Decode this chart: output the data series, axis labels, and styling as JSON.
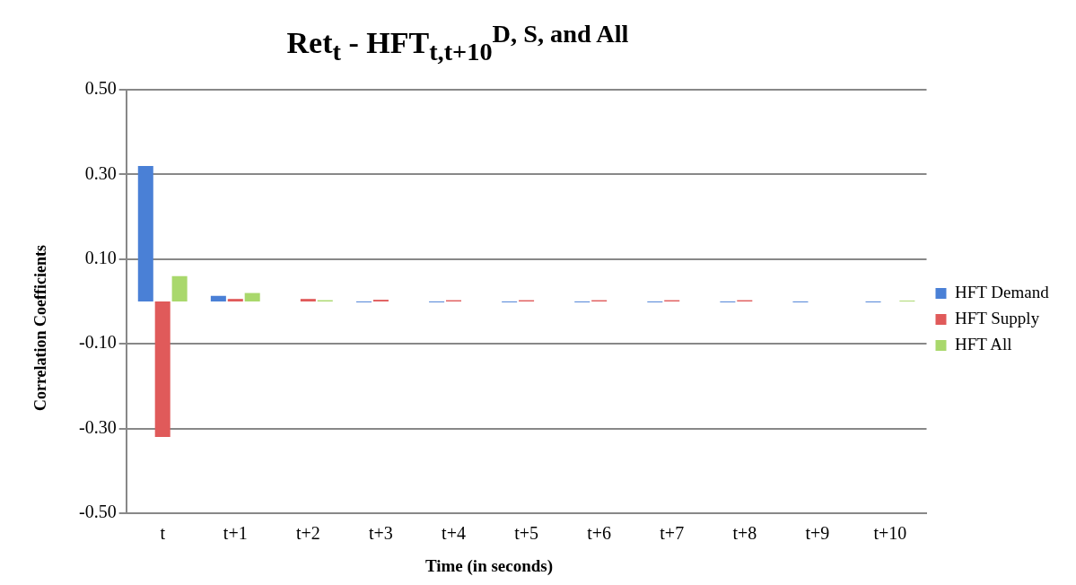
{
  "chart_data": {
    "type": "bar",
    "title": "Ret$_{t}$ - HFT$_{t,t+10}$$^{D, S, and All}$",
    "xlabel": "Time (in seconds)",
    "ylabel": "Correlation Coefficients",
    "categories": [
      "t",
      "t+1",
      "t+2",
      "t+3",
      "t+4",
      "t+5",
      "t+6",
      "t+7",
      "t+8",
      "t+9",
      "t+10"
    ],
    "series": [
      {
        "name": "HFT Demand",
        "color": "#4a80d6",
        "values": [
          0.32,
          0.013,
          0,
          -0.002,
          -0.002,
          -0.002,
          -0.002,
          -0.002,
          -0.002,
          -0.002,
          -0.002
        ]
      },
      {
        "name": "HFT Supply",
        "color": "#e05a5a",
        "values": [
          -0.32,
          0.006,
          0.006,
          0.004,
          0.003,
          0.003,
          0.003,
          0.003,
          0.003,
          0,
          0
        ]
      },
      {
        "name": "HFT All",
        "color": "#a9d86c",
        "values": [
          0.06,
          0.02,
          0.003,
          0,
          0,
          0,
          0,
          0,
          0,
          0,
          0.002
        ]
      }
    ],
    "ylim": [
      -0.5,
      0.5
    ],
    "yticks": [
      {
        "value": -0.5,
        "label": "-0.50"
      },
      {
        "value": -0.3,
        "label": "-0.30"
      },
      {
        "value": -0.1,
        "label": "-0.10"
      },
      {
        "value": 0.1,
        "label": "0.10"
      },
      {
        "value": 0.3,
        "label": "0.30"
      },
      {
        "value": 0.5,
        "label": "0.50"
      }
    ],
    "grid": "y",
    "legend": "right"
  }
}
